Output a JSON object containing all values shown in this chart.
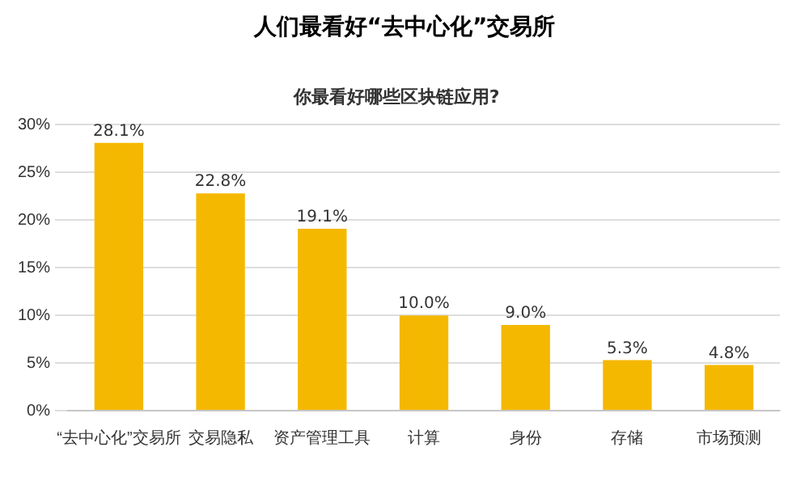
{
  "chart_data": {
    "type": "bar",
    "title": "人们最看好“去中心化”交易所",
    "subtitle": "你最看好哪些区块链应用?",
    "categories": [
      "“去中心化”交易所",
      "交易隐私",
      "资产管理工具",
      "计算",
      "身份",
      "存储",
      "市场预测"
    ],
    "values": [
      28.1,
      22.8,
      19.1,
      10.0,
      9.0,
      5.3,
      4.8
    ],
    "color": "#f5b800",
    "ylim": [
      0,
      30
    ],
    "yticks": [
      {
        "value": 0,
        "label": "0%"
      },
      {
        "value": 5,
        "label": "5%"
      },
      {
        "value": 10,
        "label": "10%"
      },
      {
        "value": 15,
        "label": "15%"
      },
      {
        "value": 20,
        "label": "20%"
      },
      {
        "value": 25,
        "label": "25%"
      },
      {
        "value": 30,
        "label": "30%"
      }
    ],
    "value_labels": [
      "28.1%",
      "22.8%",
      "19.1%",
      "10.0%",
      "9.0%",
      "5.3%",
      "4.8%"
    ],
    "grid": "y",
    "legend": false
  }
}
